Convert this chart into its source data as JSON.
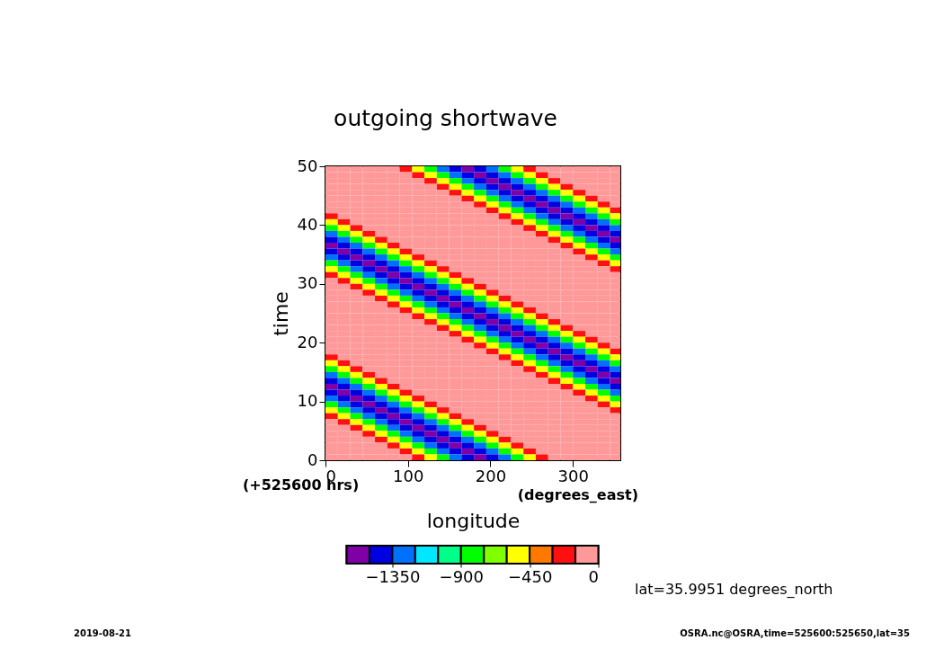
{
  "chart_data": {
    "type": "heatmap",
    "title": "outgoing shortwave",
    "xlabel": "longitude",
    "ylabel": "time",
    "annotations": [
      "(+525600 hrs)",
      "(degrees_east)",
      "lat=35.9951 degrees_north",
      "2019-08-21",
      "OSRA.nc@OSRA,time=525600:525650,lat=35"
    ],
    "xlim": [
      0,
      357.5
    ],
    "xticks": [
      0,
      100,
      200,
      300
    ],
    "ylim": [
      0,
      50
    ],
    "yticks": [
      0,
      10,
      20,
      30,
      40,
      50
    ],
    "clim": [
      -1650,
      0
    ],
    "cticks": [
      -1350,
      -900,
      -450,
      0
    ],
    "colors": [
      "#8000a8",
      "#0000e0",
      "#0070ff",
      "#00e8ff",
      "#00ff88",
      "#00ff00",
      "#80ff00",
      "#ffff00",
      "#ff7800",
      "#ff1010",
      "#ff9999"
    ],
    "x": [
      7.5,
      22.5,
      37.5,
      52.5,
      67.5,
      82.5,
      97.5,
      112.5,
      127.5,
      142.5,
      157.5,
      172.5,
      187.5,
      202.5,
      217.5,
      232.5,
      247.5,
      262.5,
      277.5,
      292.5,
      307.5,
      322.5,
      337.5,
      352.5
    ],
    "y": [
      49.5,
      48.5,
      47.5,
      46.5,
      45.5,
      44.5,
      43.5,
      42.5,
      41.5,
      40.5,
      39.5,
      38.5,
      37.5,
      36.5,
      35.5,
      34.5,
      33.5,
      32.5,
      31.5,
      30.5,
      29.5,
      28.5,
      27.5,
      26.5,
      25.5,
      24.5,
      23.5,
      22.5,
      21.5,
      20.5,
      19.5,
      18.5,
      17.5,
      16.5,
      15.5,
      14.5,
      13.5,
      12.5,
      11.5,
      10.5,
      9.5,
      8.5,
      7.5,
      6.5,
      5.5,
      4.5,
      3.5,
      2.5,
      1.5,
      0.5
    ],
    "cells": [
      [
        -75,
        -75,
        -75,
        -75,
        -75,
        -75,
        -200,
        -520,
        -850,
        -1250,
        -1450,
        -1570,
        -1450,
        -1250,
        -850,
        -520,
        -200,
        -75,
        -75,
        -75,
        -75,
        -75,
        -75,
        -75
      ],
      [
        -75,
        -75,
        -75,
        -75,
        -75,
        -75,
        -75,
        -200,
        -520,
        -850,
        -1250,
        -1450,
        -1570,
        -1450,
        -1250,
        -850,
        -520,
        -200,
        -75,
        -75,
        -75,
        -75,
        -75,
        -75
      ],
      [
        -75,
        -75,
        -75,
        -75,
        -75,
        -75,
        -75,
        -75,
        -200,
        -520,
        -850,
        -1250,
        -1450,
        -1570,
        -1450,
        -1250,
        -850,
        -520,
        -200,
        -75,
        -75,
        -75,
        -75,
        -75
      ],
      [
        -75,
        -75,
        -75,
        -75,
        -75,
        -75,
        -75,
        -75,
        -75,
        -200,
        -520,
        -850,
        -1250,
        -1450,
        -1570,
        -1450,
        -1250,
        -850,
        -520,
        -200,
        -75,
        -75,
        -75,
        -75
      ],
      [
        -75,
        -75,
        -75,
        -75,
        -75,
        -75,
        -75,
        -75,
        -75,
        -75,
        -200,
        -520,
        -850,
        -1250,
        -1450,
        -1570,
        -1450,
        -1250,
        -850,
        -520,
        -200,
        -75,
        -75,
        -75
      ],
      [
        -75,
        -75,
        -75,
        -75,
        -75,
        -75,
        -75,
        -75,
        -75,
        -75,
        -75,
        -200,
        -520,
        -850,
        -1250,
        -1450,
        -1570,
        -1450,
        -1250,
        -850,
        -520,
        -200,
        -75,
        -75
      ],
      [
        -75,
        -75,
        -75,
        -75,
        -75,
        -75,
        -75,
        -75,
        -75,
        -75,
        -75,
        -75,
        -200,
        -520,
        -850,
        -1250,
        -1450,
        -1570,
        -1450,
        -1250,
        -850,
        -520,
        -200,
        -75
      ],
      [
        -75,
        -75,
        -75,
        -75,
        -75,
        -75,
        -75,
        -75,
        -75,
        -75,
        -75,
        -75,
        -75,
        -200,
        -520,
        -850,
        -1250,
        -1450,
        -1570,
        -1450,
        -1250,
        -850,
        -520,
        -200
      ],
      [
        -200,
        -75,
        -75,
        -75,
        -75,
        -75,
        -75,
        -75,
        -75,
        -75,
        -75,
        -75,
        -75,
        -75,
        -200,
        -520,
        -850,
        -1250,
        -1450,
        -1570,
        -1450,
        -1250,
        -850,
        -520
      ],
      [
        -520,
        -200,
        -75,
        -75,
        -75,
        -75,
        -75,
        -75,
        -75,
        -75,
        -75,
        -75,
        -75,
        -75,
        -75,
        -200,
        -520,
        -850,
        -1250,
        -1450,
        -1570,
        -1450,
        -1250,
        -850
      ],
      [
        -850,
        -520,
        -200,
        -75,
        -75,
        -75,
        -75,
        -75,
        -75,
        -75,
        -75,
        -75,
        -75,
        -75,
        -75,
        -75,
        -200,
        -520,
        -850,
        -1250,
        -1450,
        -1570,
        -1450,
        -1250
      ],
      [
        -1250,
        -850,
        -520,
        -200,
        -75,
        -75,
        -75,
        -75,
        -75,
        -75,
        -75,
        -75,
        -75,
        -75,
        -75,
        -75,
        -75,
        -200,
        -520,
        -850,
        -1250,
        -1450,
        -1570,
        -1450
      ],
      [
        -1450,
        -1250,
        -850,
        -520,
        -200,
        -75,
        -75,
        -75,
        -75,
        -75,
        -75,
        -75,
        -75,
        -75,
        -75,
        -75,
        -75,
        -75,
        -200,
        -520,
        -850,
        -1250,
        -1450,
        -1570
      ],
      [
        -1570,
        -1450,
        -1250,
        -850,
        -520,
        -200,
        -75,
        -75,
        -75,
        -75,
        -75,
        -75,
        -75,
        -75,
        -75,
        -75,
        -75,
        -75,
        -75,
        -200,
        -520,
        -850,
        -1250,
        -1450
      ],
      [
        -1450,
        -1570,
        -1450,
        -1250,
        -850,
        -520,
        -200,
        -75,
        -75,
        -75,
        -75,
        -75,
        -75,
        -75,
        -75,
        -75,
        -75,
        -75,
        -75,
        -75,
        -200,
        -520,
        -850,
        -1250
      ],
      [
        -1250,
        -1450,
        -1570,
        -1450,
        -1250,
        -850,
        -520,
        -200,
        -75,
        -75,
        -75,
        -75,
        -75,
        -75,
        -75,
        -75,
        -75,
        -75,
        -75,
        -75,
        -75,
        -200,
        -520,
        -850
      ],
      [
        -850,
        -1250,
        -1450,
        -1570,
        -1450,
        -1250,
        -850,
        -520,
        -200,
        -75,
        -75,
        -75,
        -75,
        -75,
        -75,
        -75,
        -75,
        -75,
        -75,
        -75,
        -75,
        -75,
        -200,
        -520
      ],
      [
        -520,
        -850,
        -1250,
        -1450,
        -1570,
        -1450,
        -1250,
        -850,
        -520,
        -200,
        -75,
        -75,
        -75,
        -75,
        -75,
        -75,
        -75,
        -75,
        -75,
        -75,
        -75,
        -75,
        -75,
        -200
      ],
      [
        -200,
        -520,
        -850,
        -1250,
        -1450,
        -1570,
        -1450,
        -1250,
        -850,
        -520,
        -200,
        -75,
        -75,
        -75,
        -75,
        -75,
        -75,
        -75,
        -75,
        -75,
        -75,
        -75,
        -75,
        -75
      ],
      [
        -75,
        -200,
        -520,
        -850,
        -1250,
        -1450,
        -1570,
        -1450,
        -1250,
        -850,
        -520,
        -200,
        -75,
        -75,
        -75,
        -75,
        -75,
        -75,
        -75,
        -75,
        -75,
        -75,
        -75,
        -75
      ],
      [
        -75,
        -75,
        -200,
        -520,
        -850,
        -1250,
        -1450,
        -1570,
        -1450,
        -1250,
        -850,
        -520,
        -200,
        -75,
        -75,
        -75,
        -75,
        -75,
        -75,
        -75,
        -75,
        -75,
        -75,
        -75
      ],
      [
        -75,
        -75,
        -75,
        -200,
        -520,
        -850,
        -1250,
        -1450,
        -1570,
        -1450,
        -1250,
        -850,
        -520,
        -200,
        -75,
        -75,
        -75,
        -75,
        -75,
        -75,
        -75,
        -75,
        -75,
        -75
      ],
      [
        -75,
        -75,
        -75,
        -75,
        -200,
        -520,
        -850,
        -1250,
        -1450,
        -1570,
        -1450,
        -1250,
        -850,
        -520,
        -200,
        -75,
        -75,
        -75,
        -75,
        -75,
        -75,
        -75,
        -75,
        -75
      ],
      [
        -75,
        -75,
        -75,
        -75,
        -75,
        -200,
        -520,
        -850,
        -1250,
        -1450,
        -1570,
        -1450,
        -1250,
        -850,
        -520,
        -200,
        -75,
        -75,
        -75,
        -75,
        -75,
        -75,
        -75,
        -75
      ],
      [
        -75,
        -75,
        -75,
        -75,
        -75,
        -75,
        -200,
        -520,
        -850,
        -1250,
        -1450,
        -1570,
        -1450,
        -1250,
        -850,
        -520,
        -200,
        -75,
        -75,
        -75,
        -75,
        -75,
        -75,
        -75
      ],
      [
        -75,
        -75,
        -75,
        -75,
        -75,
        -75,
        -75,
        -200,
        -520,
        -850,
        -1250,
        -1450,
        -1570,
        -1450,
        -1250,
        -850,
        -520,
        -200,
        -75,
        -75,
        -75,
        -75,
        -75,
        -75
      ],
      [
        -75,
        -75,
        -75,
        -75,
        -75,
        -75,
        -75,
        -75,
        -200,
        -520,
        -850,
        -1250,
        -1450,
        -1570,
        -1450,
        -1250,
        -850,
        -520,
        -200,
        -75,
        -75,
        -75,
        -75,
        -75
      ],
      [
        -75,
        -75,
        -75,
        -75,
        -75,
        -75,
        -75,
        -75,
        -75,
        -200,
        -520,
        -850,
        -1250,
        -1450,
        -1570,
        -1450,
        -1250,
        -850,
        -520,
        -200,
        -75,
        -75,
        -75,
        -75
      ],
      [
        -75,
        -75,
        -75,
        -75,
        -75,
        -75,
        -75,
        -75,
        -75,
        -75,
        -200,
        -520,
        -850,
        -1250,
        -1450,
        -1570,
        -1450,
        -1250,
        -850,
        -520,
        -200,
        -75,
        -75,
        -75
      ],
      [
        -75,
        -75,
        -75,
        -75,
        -75,
        -75,
        -75,
        -75,
        -75,
        -75,
        -75,
        -200,
        -520,
        -850,
        -1250,
        -1450,
        -1570,
        -1450,
        -1250,
        -850,
        -520,
        -200,
        -75,
        -75
      ],
      [
        -75,
        -75,
        -75,
        -75,
        -75,
        -75,
        -75,
        -75,
        -75,
        -75,
        -75,
        -75,
        -200,
        -520,
        -850,
        -1250,
        -1450,
        -1570,
        -1450,
        -1250,
        -850,
        -520,
        -200,
        -75
      ],
      [
        -75,
        -75,
        -75,
        -75,
        -75,
        -75,
        -75,
        -75,
        -75,
        -75,
        -75,
        -75,
        -75,
        -200,
        -520,
        -850,
        -1250,
        -1450,
        -1570,
        -1450,
        -1250,
        -850,
        -520,
        -200
      ],
      [
        -200,
        -75,
        -75,
        -75,
        -75,
        -75,
        -75,
        -75,
        -75,
        -75,
        -75,
        -75,
        -75,
        -75,
        -200,
        -520,
        -850,
        -1250,
        -1450,
        -1570,
        -1450,
        -1250,
        -850,
        -520
      ],
      [
        -520,
        -200,
        -75,
        -75,
        -75,
        -75,
        -75,
        -75,
        -75,
        -75,
        -75,
        -75,
        -75,
        -75,
        -75,
        -200,
        -520,
        -850,
        -1250,
        -1450,
        -1570,
        -1450,
        -1250,
        -850
      ],
      [
        -850,
        -520,
        -200,
        -75,
        -75,
        -75,
        -75,
        -75,
        -75,
        -75,
        -75,
        -75,
        -75,
        -75,
        -75,
        -75,
        -200,
        -520,
        -850,
        -1250,
        -1450,
        -1570,
        -1450,
        -1250
      ],
      [
        -1250,
        -850,
        -520,
        -200,
        -75,
        -75,
        -75,
        -75,
        -75,
        -75,
        -75,
        -75,
        -75,
        -75,
        -75,
        -75,
        -75,
        -200,
        -520,
        -850,
        -1250,
        -1450,
        -1570,
        -1450
      ],
      [
        -1450,
        -1250,
        -850,
        -520,
        -200,
        -75,
        -75,
        -75,
        -75,
        -75,
        -75,
        -75,
        -75,
        -75,
        -75,
        -75,
        -75,
        -75,
        -200,
        -520,
        -850,
        -1250,
        -1450,
        -1570
      ],
      [
        -1570,
        -1450,
        -1250,
        -850,
        -520,
        -200,
        -75,
        -75,
        -75,
        -75,
        -75,
        -75,
        -75,
        -75,
        -75,
        -75,
        -75,
        -75,
        -75,
        -200,
        -520,
        -850,
        -1250,
        -1450
      ],
      [
        -1450,
        -1570,
        -1450,
        -1250,
        -850,
        -520,
        -200,
        -75,
        -75,
        -75,
        -75,
        -75,
        -75,
        -75,
        -75,
        -75,
        -75,
        -75,
        -75,
        -75,
        -200,
        -520,
        -850,
        -1250
      ],
      [
        -1250,
        -1450,
        -1570,
        -1450,
        -1250,
        -850,
        -520,
        -200,
        -75,
        -75,
        -75,
        -75,
        -75,
        -75,
        -75,
        -75,
        -75,
        -75,
        -75,
        -75,
        -75,
        -200,
        -520,
        -850
      ],
      [
        -850,
        -1250,
        -1450,
        -1570,
        -1450,
        -1250,
        -850,
        -520,
        -200,
        -75,
        -75,
        -75,
        -75,
        -75,
        -75,
        -75,
        -75,
        -75,
        -75,
        -75,
        -75,
        -75,
        -200,
        -520
      ],
      [
        -520,
        -850,
        -1250,
        -1450,
        -1570,
        -1450,
        -1250,
        -850,
        -520,
        -200,
        -75,
        -75,
        -75,
        -75,
        -75,
        -75,
        -75,
        -75,
        -75,
        -75,
        -75,
        -75,
        -75,
        -200
      ],
      [
        -200,
        -520,
        -850,
        -1250,
        -1450,
        -1570,
        -1450,
        -1250,
        -850,
        -520,
        -200,
        -75,
        -75,
        -75,
        -75,
        -75,
        -75,
        -75,
        -75,
        -75,
        -75,
        -75,
        -75,
        -75
      ],
      [
        -75,
        -200,
        -520,
        -850,
        -1250,
        -1450,
        -1570,
        -1450,
        -1250,
        -850,
        -520,
        -200,
        -75,
        -75,
        -75,
        -75,
        -75,
        -75,
        -75,
        -75,
        -75,
        -75,
        -75,
        -75
      ],
      [
        -75,
        -75,
        -200,
        -520,
        -850,
        -1250,
        -1450,
        -1570,
        -1450,
        -1250,
        -850,
        -520,
        -200,
        -75,
        -75,
        -75,
        -75,
        -75,
        -75,
        -75,
        -75,
        -75,
        -75,
        -75
      ],
      [
        -75,
        -75,
        -75,
        -200,
        -520,
        -850,
        -1250,
        -1450,
        -1570,
        -1450,
        -1250,
        -850,
        -520,
        -200,
        -75,
        -75,
        -75,
        -75,
        -75,
        -75,
        -75,
        -75,
        -75,
        -75
      ],
      [
        -75,
        -75,
        -75,
        -75,
        -200,
        -520,
        -850,
        -1250,
        -1450,
        -1570,
        -1450,
        -1250,
        -850,
        -520,
        -200,
        -75,
        -75,
        -75,
        -75,
        -75,
        -75,
        -75,
        -75,
        -75
      ],
      [
        -75,
        -75,
        -75,
        -75,
        -75,
        -200,
        -520,
        -850,
        -1250,
        -1450,
        -1570,
        -1450,
        -1250,
        -850,
        -520,
        -200,
        -75,
        -75,
        -75,
        -75,
        -75,
        -75,
        -75,
        -75
      ],
      [
        -75,
        -75,
        -75,
        -75,
        -75,
        -75,
        -200,
        -520,
        -850,
        -1250,
        -1450,
        -1570,
        -1450,
        -1250,
        -850,
        -520,
        -200,
        -75,
        -75,
        -75,
        -75,
        -75,
        -75,
        -75
      ],
      [
        -75,
        -75,
        -75,
        -75,
        -75,
        -75,
        -75,
        -200,
        -520,
        -850,
        -1250,
        -1450,
        -1570,
        -1450,
        -1250,
        -850,
        -520,
        -200,
        -75,
        -75,
        -75,
        -75,
        -75,
        -75
      ]
    ]
  }
}
